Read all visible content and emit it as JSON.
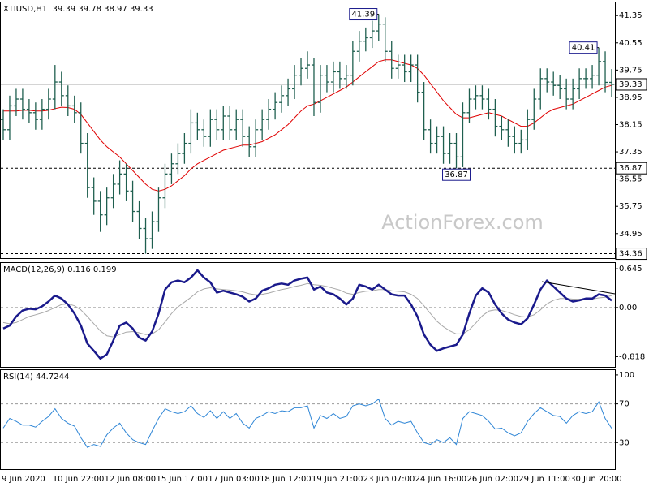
{
  "chart_data": [
    {
      "type": "ohlc",
      "title": "XTIUSD,H1  39.39 39.78 38.97 39.33",
      "watermark": "ActionForex.com",
      "color": "#1f5f4f",
      "categories": [
        "9 Jun 2020",
        null,
        null,
        null,
        null,
        null,
        null,
        null,
        "10 Jun 22:00",
        null,
        null,
        null,
        null,
        null,
        null,
        null,
        "12 Jun 08:00",
        null,
        null,
        null,
        null,
        null,
        null,
        null,
        "15 Jun 17:00",
        null,
        null,
        null,
        null,
        null,
        null,
        null,
        "17 Jun 03:00",
        null,
        null,
        null,
        null,
        null,
        null,
        null,
        "18 Jun 12:00",
        null,
        null,
        null,
        null,
        null,
        null,
        null,
        "19 Jun 21:00",
        null,
        null,
        null,
        null,
        null,
        null,
        null,
        "23 Jun 07:00",
        null,
        null,
        null,
        null,
        null,
        null,
        null,
        "24 Jun 16:00",
        null,
        null,
        null,
        null,
        null,
        null,
        null,
        "26 Jun 02:00",
        null,
        null,
        null,
        null,
        null,
        null,
        null,
        "29 Jun 11:00",
        null,
        null,
        null,
        null,
        null,
        null,
        null,
        "30 Jun 20:00",
        null,
        null,
        null,
        null,
        null,
        null
      ],
      "open": [
        38.3,
        38.0,
        38.7,
        38.9,
        38.6,
        38.5,
        38.3,
        38.6,
        38.9,
        39.4,
        39.0,
        38.7,
        38.5,
        37.6,
        36.3,
        35.9,
        35.5,
        36.0,
        36.4,
        36.7,
        36.2,
        35.6,
        35.1,
        34.8,
        35.3,
        36.0,
        36.7,
        37.0,
        37.3,
        37.6,
        38.2,
        38.0,
        37.8,
        38.3,
        38.0,
        38.4,
        38.0,
        38.3,
        37.8,
        37.5,
        38.0,
        38.3,
        38.6,
        38.8,
        39.0,
        39.2,
        39.6,
        39.8,
        39.9,
        38.8,
        39.6,
        39.4,
        39.7,
        39.5,
        39.6,
        40.3,
        40.6,
        40.7,
        40.9,
        41.1,
        40.3,
        39.8,
        39.9,
        39.7,
        39.9,
        39.1,
        38.0,
        37.6,
        37.8,
        37.3,
        37.6,
        37.2,
        38.5,
        38.9,
        39.0,
        38.9,
        38.6,
        38.1,
        38.0,
        37.8,
        37.6,
        37.7,
        38.3,
        38.9,
        39.5,
        39.4,
        39.3,
        39.2,
        38.9,
        39.2,
        39.5,
        39.5,
        39.6,
        40.0,
        39.39
      ],
      "high": [
        38.6,
        39.0,
        39.2,
        39.2,
        38.9,
        38.8,
        38.9,
        39.2,
        39.9,
        39.7,
        39.3,
        39.0,
        38.8,
        37.9,
        36.6,
        36.2,
        36.3,
        36.7,
        37.1,
        37.0,
        36.5,
        35.9,
        35.4,
        35.6,
        36.3,
        37.0,
        37.3,
        37.6,
        37.9,
        38.6,
        38.5,
        38.3,
        38.6,
        38.6,
        38.7,
        38.7,
        38.6,
        38.6,
        38.1,
        38.3,
        38.6,
        38.9,
        39.1,
        39.3,
        39.5,
        39.9,
        40.1,
        40.3,
        40.1,
        39.9,
        39.9,
        40.0,
        40.0,
        39.9,
        40.6,
        40.9,
        41.0,
        41.2,
        41.39,
        41.3,
        40.6,
        40.2,
        40.2,
        40.2,
        40.2,
        39.4,
        38.3,
        38.1,
        38.1,
        37.9,
        37.9,
        38.8,
        39.2,
        39.3,
        39.3,
        39.2,
        38.9,
        38.4,
        38.3,
        38.1,
        38.0,
        38.6,
        39.2,
        39.8,
        39.8,
        39.7,
        39.6,
        39.5,
        39.5,
        39.8,
        39.8,
        39.9,
        40.41,
        40.3,
        39.78
      ],
      "low": [
        37.7,
        37.7,
        38.4,
        38.3,
        38.2,
        38.0,
        38.0,
        38.3,
        38.6,
        38.7,
        38.4,
        38.2,
        37.3,
        36.0,
        35.5,
        35.0,
        35.2,
        35.7,
        36.1,
        35.9,
        35.3,
        34.8,
        34.36,
        34.5,
        35.0,
        35.7,
        36.4,
        36.7,
        37.0,
        37.3,
        37.7,
        37.5,
        37.5,
        37.7,
        37.7,
        37.7,
        37.7,
        37.5,
        37.2,
        37.2,
        37.7,
        38.0,
        38.3,
        38.5,
        38.7,
        38.9,
        39.3,
        39.5,
        38.4,
        38.5,
        39.1,
        39.1,
        39.2,
        39.2,
        39.3,
        40.0,
        40.3,
        40.4,
        40.6,
        40.0,
        39.5,
        39.5,
        39.4,
        39.4,
        38.8,
        37.7,
        37.3,
        37.3,
        37.0,
        37.0,
        36.87,
        36.9,
        38.2,
        38.6,
        38.6,
        38.3,
        37.8,
        37.7,
        37.5,
        37.3,
        37.3,
        37.4,
        38.0,
        38.6,
        39.1,
        39.0,
        38.9,
        38.6,
        38.6,
        38.9,
        39.2,
        39.2,
        39.3,
        39.1,
        38.97
      ],
      "close": [
        38.0,
        38.7,
        38.9,
        38.6,
        38.5,
        38.3,
        38.6,
        38.9,
        39.4,
        39.0,
        38.7,
        38.5,
        37.6,
        36.3,
        35.9,
        35.5,
        36.0,
        36.4,
        36.7,
        36.2,
        35.6,
        35.1,
        34.8,
        35.3,
        36.0,
        36.7,
        37.0,
        37.3,
        37.6,
        38.2,
        38.0,
        37.8,
        38.3,
        38.0,
        38.4,
        38.0,
        38.3,
        37.8,
        37.5,
        38.0,
        38.3,
        38.6,
        38.8,
        39.0,
        39.2,
        39.6,
        39.8,
        39.9,
        38.8,
        39.6,
        39.4,
        39.7,
        39.5,
        39.6,
        40.3,
        40.6,
        40.7,
        40.9,
        41.1,
        40.3,
        39.8,
        39.9,
        39.7,
        39.9,
        39.1,
        38.0,
        37.6,
        37.8,
        37.3,
        37.6,
        37.2,
        38.5,
        38.9,
        39.0,
        38.9,
        38.6,
        38.1,
        38.0,
        37.8,
        37.6,
        37.7,
        38.3,
        38.9,
        39.5,
        39.4,
        39.3,
        39.2,
        38.9,
        39.2,
        39.5,
        39.5,
        39.6,
        40.0,
        39.39,
        39.33
      ],
      "ma": {
        "color": "#e00000",
        "values": [
          38.55,
          38.55,
          38.55,
          38.57,
          38.57,
          38.55,
          38.55,
          38.57,
          38.62,
          38.66,
          38.65,
          38.6,
          38.45,
          38.2,
          37.95,
          37.7,
          37.5,
          37.35,
          37.2,
          37.0,
          36.8,
          36.6,
          36.4,
          36.25,
          36.2,
          36.25,
          36.35,
          36.5,
          36.65,
          36.85,
          37.0,
          37.1,
          37.2,
          37.3,
          37.4,
          37.45,
          37.5,
          37.55,
          37.55,
          37.6,
          37.65,
          37.75,
          37.85,
          38.0,
          38.15,
          38.35,
          38.55,
          38.7,
          38.75,
          38.85,
          38.95,
          39.05,
          39.15,
          39.25,
          39.4,
          39.55,
          39.7,
          39.85,
          40.0,
          40.05,
          40.05,
          40.0,
          39.95,
          39.9,
          39.8,
          39.6,
          39.35,
          39.1,
          38.85,
          38.65,
          38.45,
          38.35,
          38.35,
          38.4,
          38.45,
          38.5,
          38.45,
          38.4,
          38.3,
          38.2,
          38.1,
          38.1,
          38.2,
          38.35,
          38.5,
          38.6,
          38.65,
          38.7,
          38.75,
          38.85,
          38.95,
          39.05,
          39.15,
          39.25,
          39.3
        ]
      },
      "ylim": [
        34.23,
        41.76
      ],
      "yticks": [
        34.95,
        35.75,
        36.55,
        37.35,
        38.15,
        38.95,
        39.75,
        40.55,
        41.35
      ],
      "hlines": [
        {
          "value": 39.33,
          "dashed": false
        },
        {
          "value": 36.87,
          "dashed": true
        },
        {
          "value": 34.36,
          "dashed": true
        }
      ],
      "annotations": [
        41.39,
        36.87,
        40.41
      ]
    },
    {
      "type": "macd",
      "title": "MACD(12,26,9) 0.116 0.199",
      "series": [
        {
          "color": "#1a1a8c",
          "width": 2.5,
          "values": [
            -0.35,
            -0.3,
            -0.15,
            -0.05,
            -0.02,
            -0.03,
            0.02,
            0.1,
            0.2,
            0.15,
            0.05,
            -0.1,
            -0.3,
            -0.6,
            -0.72,
            -0.85,
            -0.78,
            -0.55,
            -0.3,
            -0.25,
            -0.35,
            -0.5,
            -0.55,
            -0.4,
            -0.1,
            0.3,
            0.42,
            0.45,
            0.42,
            0.5,
            0.62,
            0.5,
            0.42,
            0.25,
            0.28,
            0.25,
            0.22,
            0.18,
            0.1,
            0.15,
            0.28,
            0.32,
            0.38,
            0.4,
            0.38,
            0.45,
            0.48,
            0.5,
            0.3,
            0.35,
            0.25,
            0.22,
            0.15,
            0.05,
            0.15,
            0.38,
            0.35,
            0.3,
            0.38,
            0.3,
            0.22,
            0.2,
            0.2,
            0.05,
            -0.15,
            -0.45,
            -0.62,
            -0.72,
            -0.68,
            -0.65,
            -0.62,
            -0.45,
            -0.1,
            0.2,
            0.32,
            0.25,
            0.05,
            -0.1,
            -0.2,
            -0.25,
            -0.28,
            -0.18,
            0.05,
            0.3,
            0.45,
            0.35,
            0.25,
            0.15,
            0.1,
            0.12,
            0.15,
            0.15,
            0.22,
            0.2,
            0.116
          ]
        },
        {
          "color": "#a8a8a8",
          "width": 1,
          "values": [
            -0.25,
            -0.27,
            -0.25,
            -0.2,
            -0.15,
            -0.12,
            -0.09,
            -0.05,
            0.0,
            0.05,
            0.06,
            0.03,
            -0.04,
            -0.15,
            -0.27,
            -0.39,
            -0.47,
            -0.49,
            -0.45,
            -0.41,
            -0.4,
            -0.42,
            -0.45,
            -0.44,
            -0.37,
            -0.24,
            -0.1,
            0.01,
            0.09,
            0.17,
            0.26,
            0.31,
            0.33,
            0.31,
            0.3,
            0.29,
            0.28,
            0.26,
            0.23,
            0.21,
            0.22,
            0.24,
            0.27,
            0.3,
            0.32,
            0.35,
            0.37,
            0.4,
            0.38,
            0.37,
            0.35,
            0.32,
            0.29,
            0.24,
            0.22,
            0.25,
            0.27,
            0.28,
            0.3,
            0.3,
            0.28,
            0.27,
            0.26,
            0.22,
            0.15,
            0.03,
            -0.1,
            -0.23,
            -0.32,
            -0.39,
            -0.44,
            -0.44,
            -0.37,
            -0.26,
            -0.14,
            -0.06,
            -0.04,
            -0.05,
            -0.08,
            -0.12,
            -0.15,
            -0.16,
            -0.12,
            -0.04,
            0.06,
            0.12,
            0.15,
            0.15,
            0.14,
            0.14,
            0.14,
            0.14,
            0.16,
            0.17,
            0.199
          ]
        }
      ],
      "ylim": [
        -0.988,
        0.755
      ],
      "yticks": [
        -0.818,
        {
          "value": 0,
          "label": "0.00"
        },
        0.645
      ],
      "levels": [
        0
      ]
    },
    {
      "type": "rsi",
      "title": "RSI(14) 44.7244",
      "color": "#2f86d6",
      "values": [
        45,
        55,
        52,
        48,
        48,
        46,
        52,
        57,
        65,
        55,
        50,
        47,
        35,
        25,
        28,
        26,
        38,
        45,
        50,
        40,
        33,
        30,
        28,
        42,
        55,
        65,
        62,
        60,
        62,
        68,
        60,
        56,
        63,
        55,
        62,
        55,
        60,
        50,
        45,
        55,
        58,
        62,
        60,
        63,
        62,
        66,
        66,
        68,
        45,
        58,
        55,
        60,
        55,
        57,
        68,
        70,
        68,
        70,
        75,
        55,
        48,
        52,
        50,
        52,
        40,
        30,
        28,
        33,
        30,
        35,
        28,
        55,
        62,
        60,
        58,
        52,
        44,
        45,
        40,
        37,
        40,
        52,
        60,
        66,
        62,
        58,
        57,
        50,
        58,
        62,
        60,
        62,
        72,
        55,
        44.7244
      ],
      "ylim": [
        2.5,
        105.8
      ],
      "yticks": [
        30,
        70,
        100
      ],
      "levels": [
        30,
        70
      ]
    }
  ]
}
